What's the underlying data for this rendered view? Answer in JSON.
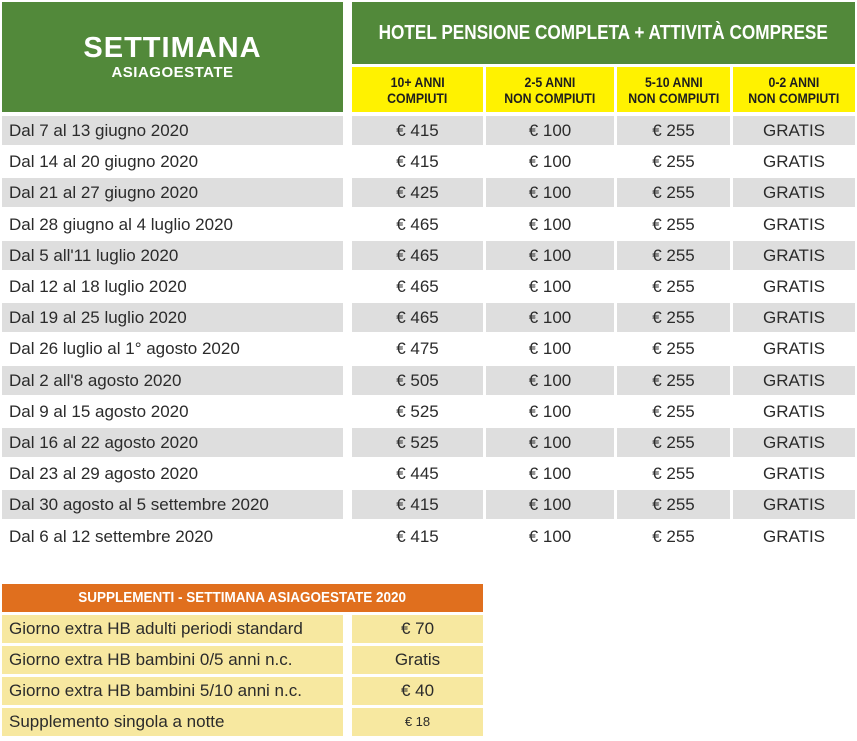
{
  "header": {
    "title": "SETTIMANA",
    "subtitle": "ASIAGOESTATE",
    "right_title": "HOTEL PENSIONE COMPLETA + ATTIVITÀ COMPRESE",
    "columns": [
      {
        "line1": "10+ ANNI",
        "line2": "COMPIUTI"
      },
      {
        "line1": "2-5 ANNI",
        "line2": "NON COMPIUTI"
      },
      {
        "line1": "5-10 ANNI",
        "line2": "NON COMPIUTI"
      },
      {
        "line1": "0-2 ANNI",
        "line2": "NON COMPIUTI"
      }
    ]
  },
  "rows": [
    {
      "period": "Dal 7 al 13 giugno 2020",
      "adult": "€ 415",
      "age2_5": "€ 100",
      "age5_10": "€ 255",
      "age0_2": "GRATIS"
    },
    {
      "period": "Dal 14 al 20 giugno 2020",
      "adult": "€ 415",
      "age2_5": "€ 100",
      "age5_10": "€ 255",
      "age0_2": "GRATIS"
    },
    {
      "period": "Dal 21 al 27 giugno 2020",
      "adult": "€ 425",
      "age2_5": "€ 100",
      "age5_10": "€ 255",
      "age0_2": "GRATIS"
    },
    {
      "period": "Dal 28 giugno al 4 luglio 2020",
      "adult": "€ 465",
      "age2_5": "€ 100",
      "age5_10": "€ 255",
      "age0_2": "GRATIS"
    },
    {
      "period": "Dal 5 all'11 luglio 2020",
      "adult": "€ 465",
      "age2_5": "€ 100",
      "age5_10": "€ 255",
      "age0_2": "GRATIS"
    },
    {
      "period": "Dal 12 al 18 luglio 2020",
      "adult": "€ 465",
      "age2_5": "€ 100",
      "age5_10": "€ 255",
      "age0_2": "GRATIS"
    },
    {
      "period": "Dal 19 al 25 luglio 2020",
      "adult": "€ 465",
      "age2_5": "€ 100",
      "age5_10": "€ 255",
      "age0_2": "GRATIS"
    },
    {
      "period": "Dal 26 luglio al 1° agosto 2020",
      "adult": "€ 475",
      "age2_5": "€ 100",
      "age5_10": "€ 255",
      "age0_2": "GRATIS"
    },
    {
      "period": "Dal 2 all'8 agosto 2020",
      "adult": "€ 505",
      "age2_5": "€ 100",
      "age5_10": "€ 255",
      "age0_2": "GRATIS"
    },
    {
      "period": "Dal 9 al 15 agosto 2020",
      "adult": "€ 525",
      "age2_5": "€ 100",
      "age5_10": "€ 255",
      "age0_2": "GRATIS"
    },
    {
      "period": "Dal 16 al 22 agosto 2020",
      "adult": "€ 525",
      "age2_5": "€ 100",
      "age5_10": "€ 255",
      "age0_2": "GRATIS"
    },
    {
      "period": "Dal 23 al 29 agosto 2020",
      "adult": "€ 445",
      "age2_5": "€ 100",
      "age5_10": "€ 255",
      "age0_2": "GRATIS"
    },
    {
      "period": "Dal 30 agosto al 5 settembre 2020",
      "adult": "€ 415",
      "age2_5": "€ 100",
      "age5_10": "€ 255",
      "age0_2": "GRATIS"
    },
    {
      "period": "Dal 6 al 12 settembre 2020",
      "adult": "€ 415",
      "age2_5": "€ 100",
      "age5_10": "€ 255",
      "age0_2": "GRATIS"
    }
  ],
  "supplements": {
    "title": "SUPPLEMENTI - SETTIMANA ASIAGOESTATE 2020",
    "items": [
      {
        "label": "Giorno extra HB adulti periodi standard",
        "value": "€ 70"
      },
      {
        "label": "Giorno extra HB bambini 0/5 anni n.c.",
        "value": "Gratis"
      },
      {
        "label": "Giorno extra HB bambini 5/10 anni n.c.",
        "value": "€ 40"
      },
      {
        "label": "Supplemento singola a notte",
        "value": "€ 18"
      }
    ]
  },
  "colors": {
    "header_green": "#52893a",
    "subhead_yellow": "#fff200",
    "row_shade": "#dedede",
    "supp_orange": "#e06f1e",
    "supp_cream": "#f7e8a0"
  }
}
